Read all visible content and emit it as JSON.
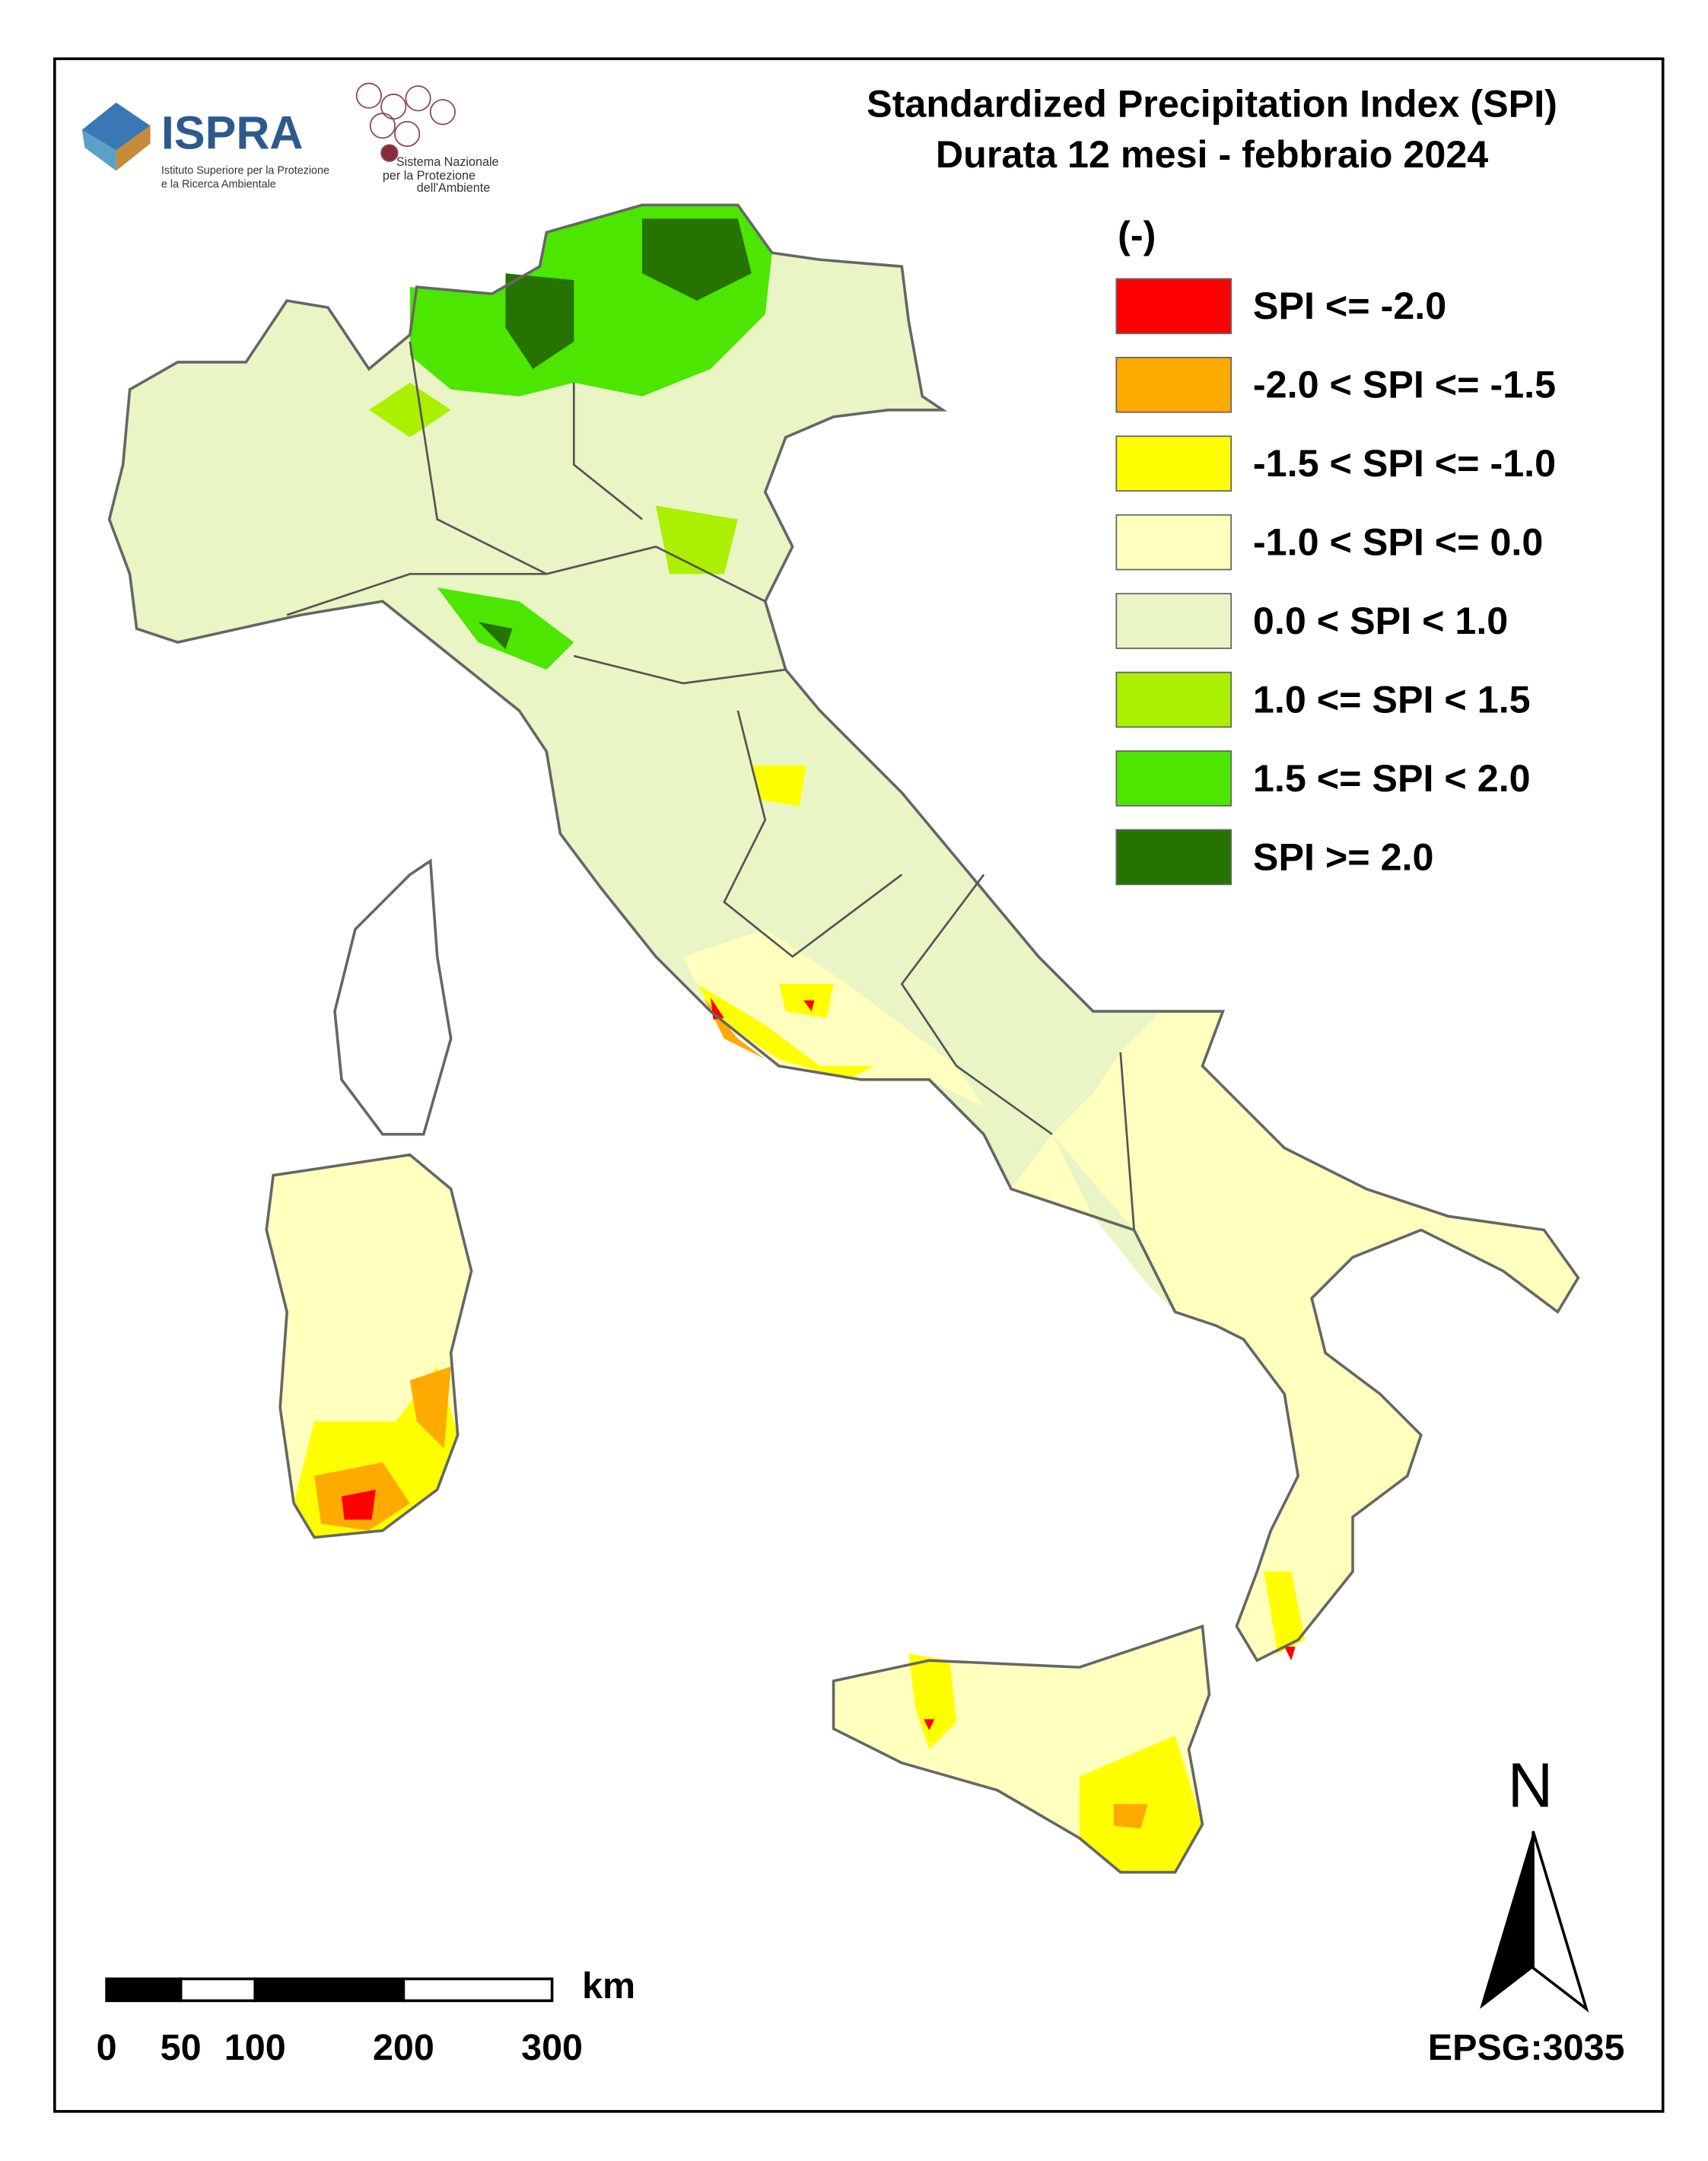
{
  "header": {
    "title_line1": "Standardized Precipitation  Index (SPI)",
    "title_line2": "Durata 12 mesi - febbraio 2024"
  },
  "logos": {
    "ispra": "ISPRA",
    "ispra_sub1": "Istituto Superiore per la Protezione",
    "ispra_sub2": "e la Ricerca Ambientale",
    "snpa_line1": "Sistema Nazionale",
    "snpa_line2": "per la Protezione",
    "snpa_line3": "dell'Ambiente"
  },
  "legend": {
    "unit": "(-)",
    "items": [
      {
        "label": "SPI <= -2.0",
        "color": "#ff0000"
      },
      {
        "label": "-2.0 < SPI <= -1.5",
        "color": "#ffaa00"
      },
      {
        "label": "-1.5 < SPI <= -1.0",
        "color": "#ffff00"
      },
      {
        "label": "-1.0 < SPI <= 0.0",
        "color": "#ffffbe"
      },
      {
        "label": "0.0 < SPI < 1.0",
        "color": "#e9f5c4"
      },
      {
        "label": "1.0 <= SPI < 1.5",
        "color": "#aaf000"
      },
      {
        "label": "1.5 <= SPI < 2.0",
        "color": "#4ce600"
      },
      {
        "label": "SPI >= 2.0",
        "color": "#267300"
      }
    ]
  },
  "scale_bar": {
    "ticks": [
      0,
      50,
      100,
      200,
      300
    ],
    "unit": "km"
  },
  "north_arrow": "N",
  "crs": "EPSG:3035"
}
